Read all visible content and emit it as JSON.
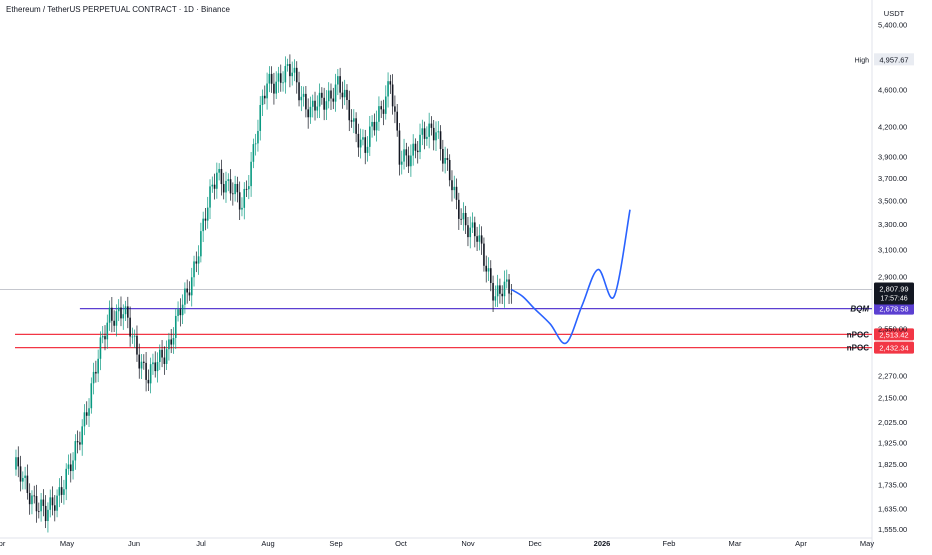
{
  "header": {
    "title": "Ethereum / TetherUS PERPETUAL CONTRACT · 1D · Binance",
    "currency": "USDT"
  },
  "price_axis": {
    "ticks": [
      "5,400.00",
      "4,600.00",
      "4,200.00",
      "3,900.00",
      "3,700.00",
      "3,500.00",
      "3,300.00",
      "3,100.00",
      "2,900.00",
      "2,550.00",
      "2,270.00",
      "2,150.00",
      "2,025.00",
      "1,925.00",
      "1,825.00",
      "1,735.00",
      "1,635.00",
      "1,555.00"
    ],
    "high_label": "High",
    "high_value": "4,957.67",
    "last_price": "2,807.99",
    "countdown": "17:57:46"
  },
  "time_axis": {
    "labels": [
      "pr",
      "May",
      "Jun",
      "Jul",
      "Aug",
      "Sep",
      "Oct",
      "Nov",
      "Dec",
      "2026",
      "Feb",
      "Mar",
      "Apr",
      "May"
    ]
  },
  "levels": [
    {
      "name": "BQM",
      "value": "2,678.58",
      "price": 2678.58,
      "color": "#5b3fd1"
    },
    {
      "name": "nPOC",
      "value": "2,513.42",
      "price": 2513.42,
      "color": "#f23645"
    },
    {
      "name": "nPOC",
      "value": "2,432.34",
      "price": 2432.34,
      "color": "#f23645"
    }
  ],
  "colors": {
    "up": "#089981",
    "down": "#131722",
    "projection": "#2962ff",
    "bqm": "#5b3fd1",
    "npoc": "#f23645"
  },
  "chart_data": {
    "type": "line",
    "title": "Ethereum / TetherUS PERPETUAL CONTRACT · 1D · Binance",
    "xlabel": "",
    "ylabel": "USDT",
    "y_scale": "log",
    "ylim": [
      1520,
      5600
    ],
    "x": [
      "2025-04-25",
      "2025-05-08",
      "2025-05-20",
      "2025-06-05",
      "2025-06-11",
      "2025-06-22",
      "2025-07-01",
      "2025-07-09",
      "2025-07-22",
      "2025-08-02",
      "2025-08-13",
      "2025-08-24",
      "2025-09-01",
      "2025-09-13",
      "2025-09-25",
      "2025-10-06",
      "2025-10-10",
      "2025-10-26",
      "2025-11-04",
      "2025-11-13",
      "2025-11-21",
      "2025-11-28"
    ],
    "series": [
      {
        "values": [
          1800,
          1600,
          1830,
          2650,
          2650,
          2250,
          2460,
          2780,
          3770,
          3450,
          4680,
          4800,
          4340,
          4650,
          3960,
          4700,
          3850,
          4200,
          3450,
          3180,
          2780,
          2808
        ]
      }
    ],
    "projection": {
      "x": [
        "2025-11-28",
        "2025-12-03",
        "2025-12-08",
        "2025-12-15",
        "2025-12-22",
        "2025-12-29",
        "2026-01-05",
        "2026-01-12",
        "2026-01-19"
      ],
      "values": [
        2808,
        2760,
        2680,
        2580,
        2460,
        2700,
        2950,
        2760,
        3420
      ]
    }
  }
}
